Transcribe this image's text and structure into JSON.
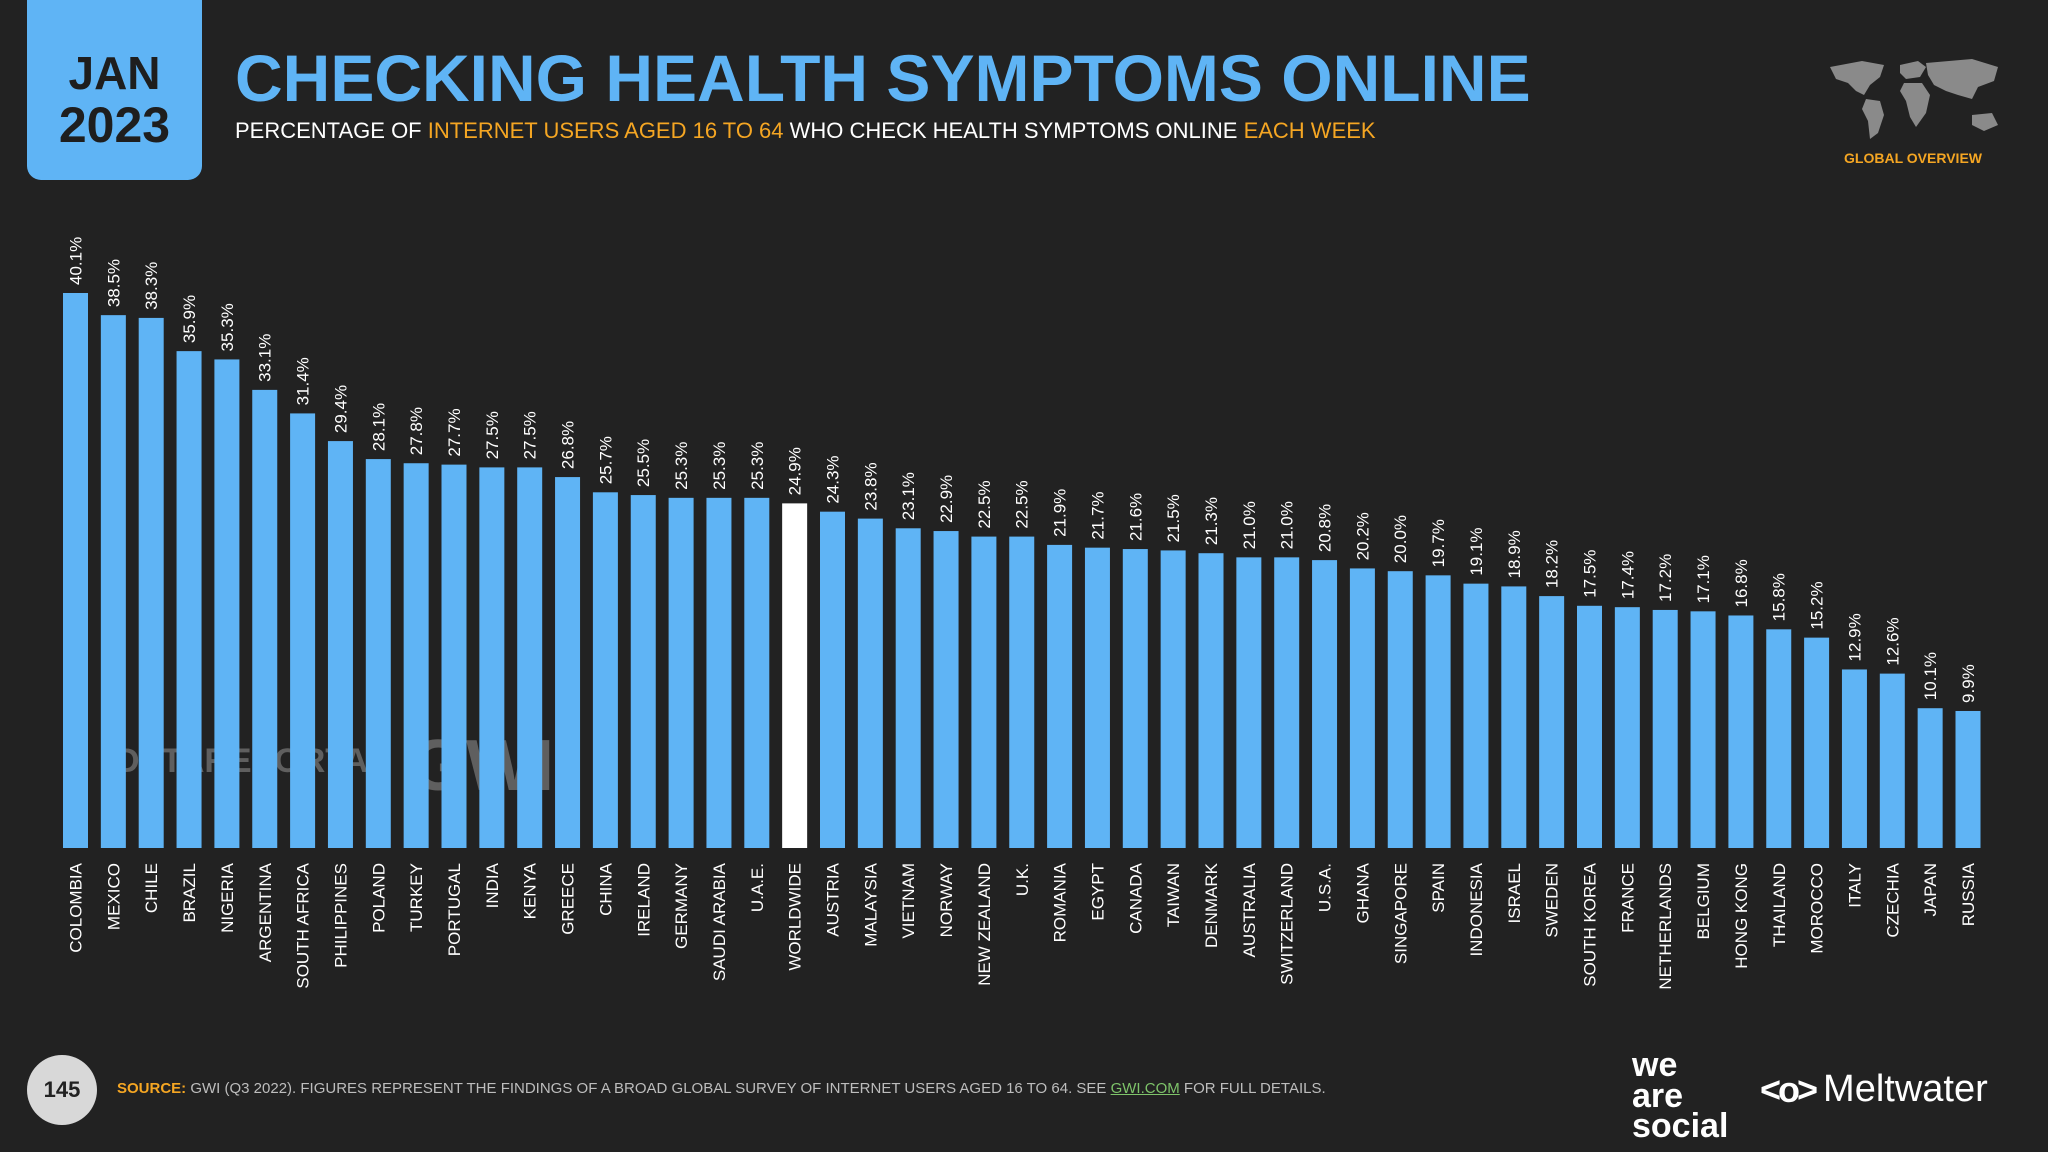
{
  "header": {
    "month": "JAN",
    "year": "2023",
    "title": "CHECKING HEALTH SYMPTOMS ONLINE",
    "subtitle_parts": {
      "a": "PERCENTAGE OF ",
      "b": "INTERNET USERS AGED 16 TO 64",
      "c": " WHO CHECK HEALTH SYMPTOMS ONLINE ",
      "d": "EACH WEEK"
    },
    "section_label": "GLOBAL OVERVIEW"
  },
  "watermarks": {
    "datareportal": "DATAREPORTAL",
    "gwi": "GWI."
  },
  "footer": {
    "page_number": "145",
    "source_label": "SOURCE:",
    "source_text": " GWI (Q3 2022). FIGURES REPRESENT THE FINDINGS OF A BROAD GLOBAL SURVEY OF INTERNET USERS AGED 16 TO 64. SEE ",
    "source_link": "GWI.COM",
    "source_tail": " FOR FULL DETAILS.",
    "logo_we_are_social": "we\nare\nsocial",
    "logo_meltwater": "Meltwater",
    "logo_meltwater_mark": "<o>"
  },
  "colors": {
    "bar": "#5fb4f5",
    "highlight_bar": "#ffffff",
    "accent": "#f5a623",
    "background": "#222222"
  },
  "chart_data": {
    "type": "bar",
    "title": "CHECKING HEALTH SYMPTOMS ONLINE",
    "xlabel": "",
    "ylabel": "",
    "ylim": [
      0,
      40.1
    ],
    "highlight_category": "WORLDWIDE",
    "categories": [
      "COLOMBIA",
      "MEXICO",
      "CHILE",
      "BRAZIL",
      "NIGERIA",
      "ARGENTINA",
      "SOUTH AFRICA",
      "PHILIPPINES",
      "POLAND",
      "TURKEY",
      "PORTUGAL",
      "INDIA",
      "KENYA",
      "GREECE",
      "CHINA",
      "IRELAND",
      "GERMANY",
      "SAUDI ARABIA",
      "U.A.E.",
      "WORLDWIDE",
      "AUSTRIA",
      "MALAYSIA",
      "VIETNAM",
      "NORWAY",
      "NEW ZEALAND",
      "U.K.",
      "ROMANIA",
      "EGYPT",
      "CANADA",
      "TAIWAN",
      "DENMARK",
      "AUSTRALIA",
      "SWITZERLAND",
      "U.S.A.",
      "GHANA",
      "SINGAPORE",
      "SPAIN",
      "INDONESIA",
      "ISRAEL",
      "SWEDEN",
      "SOUTH KOREA",
      "FRANCE",
      "NETHERLANDS",
      "BELGIUM",
      "HONG KONG",
      "THAILAND",
      "MOROCCO",
      "ITALY",
      "CZECHIA",
      "JAPAN",
      "RUSSIA"
    ],
    "values": [
      40.1,
      38.5,
      38.3,
      35.9,
      35.3,
      33.1,
      31.4,
      29.4,
      28.1,
      27.8,
      27.7,
      27.5,
      27.5,
      26.8,
      25.7,
      25.5,
      25.3,
      25.3,
      25.3,
      24.9,
      24.3,
      23.8,
      23.1,
      22.9,
      22.5,
      22.5,
      21.9,
      21.7,
      21.6,
      21.5,
      21.3,
      21.0,
      21.0,
      20.8,
      20.2,
      20.0,
      19.7,
      19.1,
      18.9,
      18.2,
      17.5,
      17.4,
      17.2,
      17.1,
      16.8,
      15.8,
      15.2,
      12.9,
      12.6,
      10.1,
      9.9
    ],
    "labels": [
      "40.1%",
      "38.5%",
      "38.3%",
      "35.9%",
      "35.3%",
      "33.1%",
      "31.4%",
      "29.4%",
      "28.1%",
      "27.8%",
      "27.7%",
      "27.5%",
      "27.5%",
      "26.8%",
      "25.7%",
      "25.5%",
      "25.3%",
      "25.3%",
      "25.3%",
      "24.9%",
      "24.3%",
      "23.8%",
      "23.1%",
      "22.9%",
      "22.5%",
      "22.5%",
      "21.9%",
      "21.7%",
      "21.6%",
      "21.5%",
      "21.3%",
      "21.0%",
      "21.0%",
      "20.8%",
      "20.2%",
      "20.0%",
      "19.7%",
      "19.1%",
      "18.9%",
      "18.2%",
      "17.5%",
      "17.4%",
      "17.2%",
      "17.1%",
      "16.8%",
      "15.8%",
      "15.2%",
      "12.9%",
      "12.6%",
      "10.1%",
      "9.9%"
    ]
  }
}
